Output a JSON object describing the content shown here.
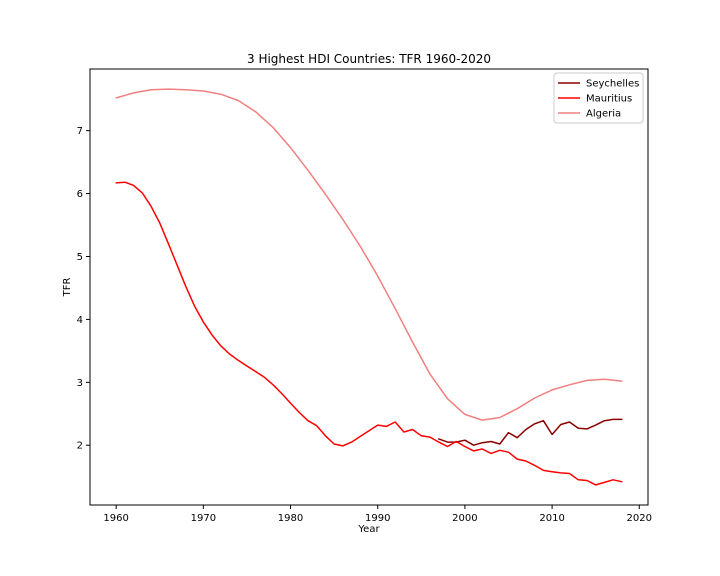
{
  "chart_data": {
    "type": "line",
    "title": "3 Highest HDI Countries: TFR 1960-2020",
    "xlabel": "Year",
    "ylabel": "TFR",
    "xlim": [
      1957,
      2021
    ],
    "ylim": [
      1.05,
      7.98
    ],
    "xticks": [
      1960,
      1970,
      1980,
      1990,
      2000,
      2010,
      2020
    ],
    "yticks": [
      2,
      3,
      4,
      5,
      6,
      7
    ],
    "grid": false,
    "legend_position": "top-right",
    "series": [
      {
        "name": "Seychelles",
        "color": "#8b0000",
        "x": [
          1997,
          1998,
          1999,
          2000,
          2001,
          2002,
          2003,
          2004,
          2005,
          2006,
          2007,
          2008,
          2009,
          2010,
          2011,
          2012,
          2013,
          2014,
          2015,
          2016,
          2017,
          2018
        ],
        "y": [
          2.1,
          2.05,
          2.05,
          2.08,
          2.0,
          2.04,
          2.06,
          2.02,
          2.2,
          2.12,
          2.25,
          2.34,
          2.39,
          2.17,
          2.33,
          2.37,
          2.27,
          2.26,
          2.32,
          2.39,
          2.41,
          2.41
        ]
      },
      {
        "name": "Mauritius",
        "color": "#ff0000",
        "x": [
          1960,
          1961,
          1962,
          1963,
          1964,
          1965,
          1966,
          1967,
          1968,
          1969,
          1970,
          1971,
          1972,
          1973,
          1974,
          1975,
          1976,
          1977,
          1978,
          1979,
          1980,
          1981,
          1982,
          1983,
          1984,
          1985,
          1986,
          1987,
          1988,
          1989,
          1990,
          1991,
          1992,
          1993,
          1994,
          1995,
          1996,
          1997,
          1998,
          1999,
          2000,
          2001,
          2002,
          2003,
          2004,
          2005,
          2006,
          2007,
          2008,
          2009,
          2010,
          2011,
          2012,
          2013,
          2014,
          2015,
          2016,
          2017,
          2018
        ],
        "y": [
          6.17,
          6.18,
          6.13,
          6.01,
          5.8,
          5.53,
          5.2,
          4.86,
          4.52,
          4.21,
          3.96,
          3.75,
          3.58,
          3.45,
          3.35,
          3.26,
          3.17,
          3.08,
          2.96,
          2.82,
          2.67,
          2.52,
          2.39,
          2.31,
          2.15,
          2.02,
          1.99,
          2.05,
          2.14,
          2.23,
          2.32,
          2.3,
          2.37,
          2.21,
          2.25,
          2.15,
          2.13,
          2.05,
          1.98,
          2.06,
          1.98,
          1.91,
          1.94,
          1.87,
          1.92,
          1.89,
          1.78,
          1.75,
          1.68,
          1.6,
          1.58,
          1.56,
          1.55,
          1.45,
          1.44,
          1.37,
          1.41,
          1.45,
          1.42
        ]
      },
      {
        "name": "Algeria",
        "color": "#f08080",
        "x": [
          1960,
          1962,
          1964,
          1966,
          1968,
          1970,
          1972,
          1974,
          1976,
          1978,
          1980,
          1982,
          1984,
          1986,
          1988,
          1990,
          1992,
          1994,
          1996,
          1998,
          2000,
          2002,
          2004,
          2006,
          2008,
          2010,
          2012,
          2014,
          2016,
          2018
        ],
        "y": [
          7.52,
          7.6,
          7.65,
          7.66,
          7.65,
          7.63,
          7.58,
          7.48,
          7.3,
          7.05,
          6.73,
          6.37,
          5.99,
          5.59,
          5.16,
          4.69,
          4.17,
          3.64,
          3.13,
          2.74,
          2.49,
          2.4,
          2.44,
          2.58,
          2.75,
          2.88,
          2.96,
          3.03,
          3.05,
          3.02
        ]
      }
    ]
  }
}
